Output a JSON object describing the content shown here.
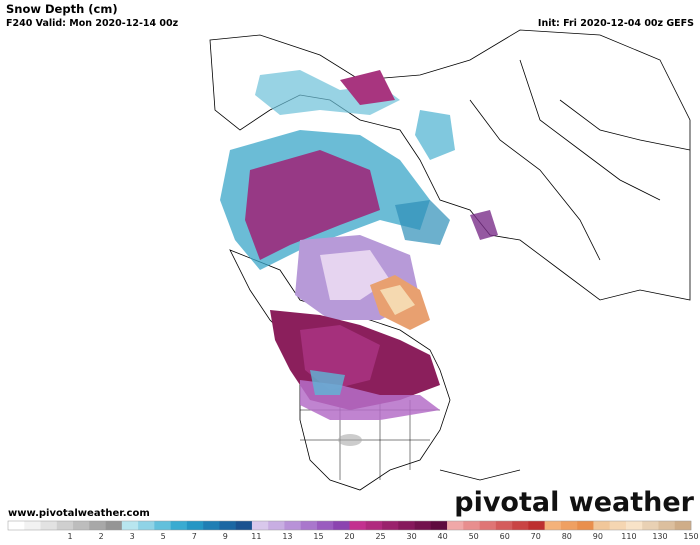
{
  "header": {
    "title": "Snow Depth (cm)",
    "valid": "F240 Valid: Mon 2020-12-14 00z",
    "init": "Init: Fri 2020-12-04 00z GEFS"
  },
  "footer": {
    "website": "www.pivotalweather.com",
    "logo": "pivotal weather"
  },
  "legend": {
    "labels": [
      1,
      2,
      3,
      5,
      7,
      9,
      11,
      13,
      15,
      20,
      25,
      30,
      40,
      50,
      60,
      70,
      80,
      90,
      110,
      130,
      150
    ]
  }
}
